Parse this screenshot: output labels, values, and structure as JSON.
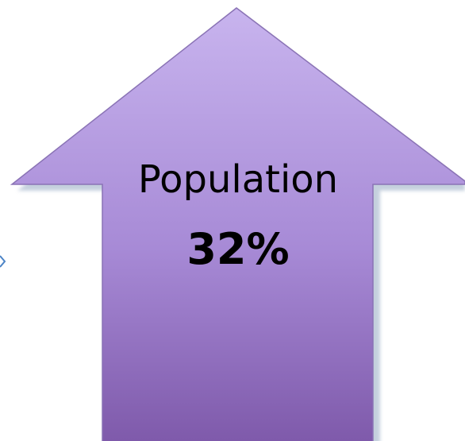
{
  "arrow": {
    "title": "Population",
    "value": "32%",
    "direction": "up",
    "fill_top": "#c2acea",
    "fill_bottom": "#7e59aa",
    "stroke": "#8a73b5",
    "shadow": "#a6b7cc"
  },
  "fragment": {
    "icon": "arrow-tip-fragment-icon",
    "color": "#4b83c6"
  }
}
